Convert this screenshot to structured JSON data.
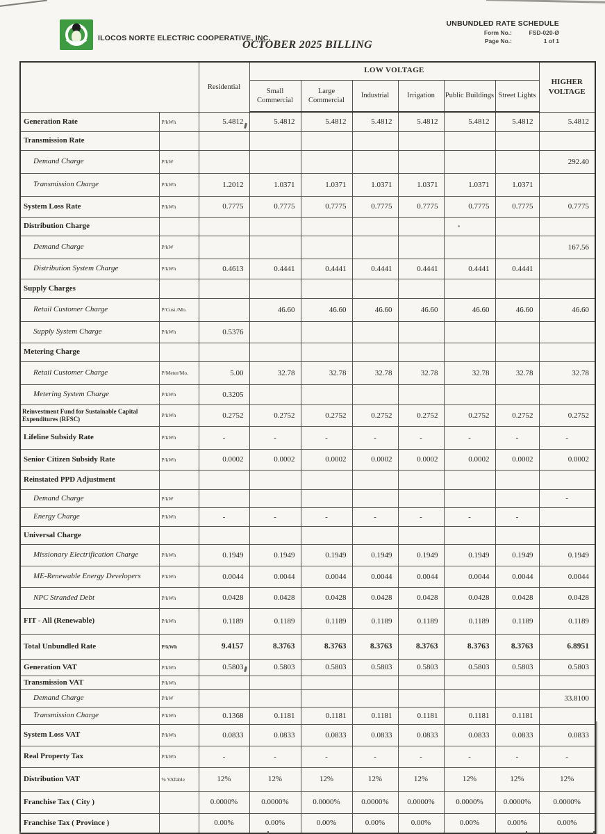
{
  "header": {
    "company": "ILOCOS NORTE ELECTRIC COOPERATIVE, INC.",
    "title": "OCTOBER 2025 BILLING",
    "schedule_heading": "UNBUNDLED RATE SCHEDULE",
    "form_no_label": "Form No.:",
    "form_no_value": "FSD-020-Ø",
    "page_no_label": "Page No.:",
    "page_no_value": "1 of 1",
    "logo_color": "#3e9b41"
  },
  "table": {
    "group_header": "LOW VOLTAGE",
    "columns": [
      "Residential",
      "Small Commercial",
      "Large Commercial",
      "Industrial",
      "Irrigation",
      "Public Buildings",
      "Street Lights",
      "HIGHER VOLTAGE"
    ],
    "rows": [
      {
        "label": "Generation Rate",
        "unit": "P/kWh",
        "kind": "section",
        "values": [
          "5.4812",
          "5.4812",
          "5.4812",
          "5.4812",
          "5.4812",
          "5.4812",
          "5.4812",
          "5.4812"
        ]
      },
      {
        "label": "Transmission Rate",
        "unit": "",
        "kind": "section",
        "values": [
          "",
          "",
          "",
          "",
          "",
          "",
          "",
          ""
        ]
      },
      {
        "label": "Demand Charge",
        "unit": "P/kW",
        "kind": "sub",
        "values": [
          "",
          "",
          "",
          "",
          "",
          "",
          "",
          "292.40"
        ]
      },
      {
        "label": "Transmission Charge",
        "unit": "P/kWh",
        "kind": "sub",
        "values": [
          "1.2012",
          "1.0371",
          "1.0371",
          "1.0371",
          "1.0371",
          "1.0371",
          "1.0371",
          ""
        ]
      },
      {
        "label": "System Loss Rate",
        "unit": "P/kWh",
        "kind": "section",
        "values": [
          "0.7775",
          "0.7775",
          "0.7775",
          "0.7775",
          "0.7775",
          "0.7775",
          "0.7775",
          "0.7775"
        ]
      },
      {
        "label": "Distribution Charge",
        "unit": "",
        "kind": "section",
        "values": [
          "",
          "",
          "",
          "",
          "",
          "",
          "",
          ""
        ]
      },
      {
        "label": "Demand Charge",
        "unit": "P/kW",
        "kind": "sub",
        "values": [
          "",
          "",
          "",
          "",
          "",
          "",
          "",
          "167.56"
        ]
      },
      {
        "label": "Distribution System Charge",
        "unit": "P/kWh",
        "kind": "sub",
        "values": [
          "0.4613",
          "0.4441",
          "0.4441",
          "0.4441",
          "0.4441",
          "0.4441",
          "0.4441",
          ""
        ]
      },
      {
        "label": "Supply Charges",
        "unit": "",
        "kind": "section",
        "values": [
          "",
          "",
          "",
          "",
          "",
          "",
          "",
          ""
        ]
      },
      {
        "label": "Retail Customer Charge",
        "unit": "P/Cust./Mo.",
        "kind": "sub",
        "values": [
          "",
          "46.60",
          "46.60",
          "46.60",
          "46.60",
          "46.60",
          "46.60",
          "46.60"
        ]
      },
      {
        "label": "Supply System Charge",
        "unit": "P/kWh",
        "kind": "sub",
        "values": [
          "0.5376",
          "",
          "",
          "",
          "",
          "",
          "",
          ""
        ]
      },
      {
        "label": "Metering Charge",
        "unit": "",
        "kind": "section",
        "values": [
          "",
          "",
          "",
          "",
          "",
          "",
          "",
          ""
        ]
      },
      {
        "label": "Retail Customer Charge",
        "unit": "P/Meter/Mo.",
        "kind": "sub",
        "values": [
          "5.00",
          "32.78",
          "32.78",
          "32.78",
          "32.78",
          "32.78",
          "32.78",
          "32.78"
        ]
      },
      {
        "label": "Metering System Charge",
        "unit": "P/kWh",
        "kind": "sub",
        "values": [
          "0.3205",
          "",
          "",
          "",
          "",
          "",
          "",
          ""
        ]
      },
      {
        "label": "Reinvestment Fund for Sustainable Capital Expenditures (RFSC)",
        "unit": "P/kWh",
        "kind": "section",
        "small": true,
        "values": [
          "0.2752",
          "0.2752",
          "0.2752",
          "0.2752",
          "0.2752",
          "0.2752",
          "0.2752",
          "0.2752"
        ]
      },
      {
        "label": "Lifeline Subsidy Rate",
        "unit": "P/kWh",
        "kind": "section",
        "values": [
          "-",
          "-",
          "-",
          "-",
          "-",
          "-",
          "-",
          "-"
        ]
      },
      {
        "label": "Senior Citizen Subsidy Rate",
        "unit": "P/kWh",
        "kind": "section",
        "values": [
          "0.0002",
          "0.0002",
          "0.0002",
          "0.0002",
          "0.0002",
          "0.0002",
          "0.0002",
          "0.0002"
        ]
      },
      {
        "label": "Reinstated PPD Adjustment",
        "unit": "",
        "kind": "section",
        "values": [
          "",
          "",
          "",
          "",
          "",
          "",
          "",
          ""
        ]
      },
      {
        "label": "Demand Charge",
        "unit": "P/kW",
        "kind": "sub",
        "values": [
          "",
          "",
          "",
          "",
          "",
          "",
          "",
          "-"
        ]
      },
      {
        "label": "Energy Charge",
        "unit": "P/kWh",
        "kind": "sub",
        "values": [
          "-",
          "-",
          "-",
          "-",
          "-",
          "-",
          "-",
          ""
        ]
      },
      {
        "label": "Universal Charge",
        "unit": "",
        "kind": "section",
        "values": [
          "",
          "",
          "",
          "",
          "",
          "",
          "",
          ""
        ]
      },
      {
        "label": "Missionary Electrification Charge",
        "unit": "P/kWh",
        "kind": "sub",
        "values": [
          "0.1949",
          "0.1949",
          "0.1949",
          "0.1949",
          "0.1949",
          "0.1949",
          "0.1949",
          "0.1949"
        ]
      },
      {
        "label": "ME-Renewable Energy Developers",
        "unit": "P/kWh",
        "kind": "sub",
        "values": [
          "0.0044",
          "0.0044",
          "0.0044",
          "0.0044",
          "0.0044",
          "0.0044",
          "0.0044",
          "0.0044"
        ]
      },
      {
        "label": "NPC Stranded Debt",
        "unit": "P/kWh",
        "kind": "sub",
        "values": [
          "0.0428",
          "0.0428",
          "0.0428",
          "0.0428",
          "0.0428",
          "0.0428",
          "0.0428",
          "0.0428"
        ]
      },
      {
        "label": "FIT - All (Renewable)",
        "unit": "P/kWh",
        "kind": "section",
        "values": [
          "0.1189",
          "0.1189",
          "0.1189",
          "0.1189",
          "0.1189",
          "0.1189",
          "0.1189",
          "0.1189"
        ]
      },
      {
        "label": "Total Unbundled Rate",
        "unit": "P/kWh",
        "kind": "section",
        "bold": true,
        "values": [
          "9.4157",
          "8.3763",
          "8.3763",
          "8.3763",
          "8.3763",
          "8.3763",
          "8.3763",
          "6.8951"
        ]
      },
      {
        "label": "Generation VAT",
        "unit": "P/kWh",
        "kind": "section",
        "values": [
          "0.5803",
          "0.5803",
          "0.5803",
          "0.5803",
          "0.5803",
          "0.5803",
          "0.5803",
          "0.5803"
        ]
      },
      {
        "label": "Transmission VAT",
        "unit": "P/kWh",
        "kind": "section",
        "values": [
          "",
          "",
          "",
          "",
          "",
          "",
          "",
          ""
        ]
      },
      {
        "label": "Demand Charge",
        "unit": "P/kW",
        "kind": "sub",
        "values": [
          "",
          "",
          "",
          "",
          "",
          "",
          "",
          "33.8100"
        ]
      },
      {
        "label": "Transmission Charge",
        "unit": "P/kWh",
        "kind": "sub",
        "values": [
          "0.1368",
          "0.1181",
          "0.1181",
          "0.1181",
          "0.1181",
          "0.1181",
          "0.1181",
          ""
        ]
      },
      {
        "label": "System Loss VAT",
        "unit": "P/kWh",
        "kind": "section",
        "values": [
          "0.0833",
          "0.0833",
          "0.0833",
          "0.0833",
          "0.0833",
          "0.0833",
          "0.0833",
          "0.0833"
        ]
      },
      {
        "label": "Real Property Tax",
        "unit": "P/kWh",
        "kind": "section",
        "values": [
          "-",
          "-",
          "-",
          "-",
          "-",
          "-",
          "-",
          "-"
        ]
      },
      {
        "label": "Distribution VAT",
        "unit": "% VATable",
        "kind": "section",
        "values": [
          "12%",
          "12%",
          "12%",
          "12%",
          "12%",
          "12%",
          "12%",
          "12%"
        ]
      },
      {
        "label": "Franchise Tax ( City )",
        "unit": "",
        "kind": "section",
        "values": [
          "0.0000%",
          "0.0000%",
          "0.0000%",
          "0.0000%",
          "0.0000%",
          "0.0000%",
          "0.0000%",
          "0.0000%"
        ]
      },
      {
        "label": "Franchise Tax ( Province )",
        "unit": "",
        "kind": "section",
        "values": [
          "0.00%",
          "0.00%",
          "0.00%",
          "0.00%",
          "0.00%",
          "0.00%",
          "0.00%",
          "0.00%"
        ]
      }
    ]
  }
}
